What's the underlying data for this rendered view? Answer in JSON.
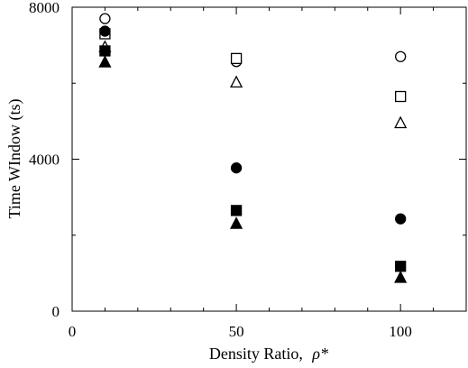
{
  "chart_data": {
    "type": "scatter",
    "title": "",
    "xlabel": "Density Ratio, ",
    "xlabel_symbol": "ρ*",
    "ylabel": "Time WIndow (ts)",
    "xlim": [
      0,
      120
    ],
    "ylim": [
      0,
      8000
    ],
    "x_ticks": [
      0,
      50,
      100
    ],
    "x_minor_ticks": [
      10,
      20,
      30,
      40,
      60,
      70,
      80,
      90,
      110
    ],
    "y_ticks": [
      0,
      4000,
      8000
    ],
    "y_minor_ticks": [
      2000,
      6000
    ],
    "grid": false,
    "legend": "none",
    "series": [
      {
        "marker": "circle-open",
        "x": [
          10,
          50,
          100
        ],
        "y": [
          7700,
          6570,
          6700
        ]
      },
      {
        "marker": "square-open",
        "x": [
          10,
          50,
          100
        ],
        "y": [
          7300,
          6650,
          5650
        ]
      },
      {
        "marker": "triangle-open",
        "x": [
          10,
          50,
          100
        ],
        "y": [
          6950,
          6020,
          4950
        ]
      },
      {
        "marker": "circle-filled",
        "x": [
          10,
          50,
          100
        ],
        "y": [
          7370,
          3770,
          2430
        ]
      },
      {
        "marker": "square-filled",
        "x": [
          10,
          50,
          100
        ],
        "y": [
          6850,
          2650,
          1180
        ]
      },
      {
        "marker": "triangle-filled",
        "x": [
          10,
          50,
          100
        ],
        "y": [
          6550,
          2300,
          880
        ]
      }
    ],
    "colors": {
      "marker": "#000000",
      "axis": "#000000"
    }
  }
}
